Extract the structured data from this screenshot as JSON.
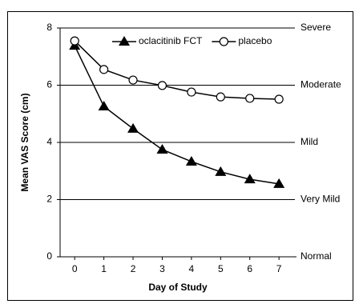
{
  "chart_data": {
    "type": "line",
    "xlabel": "Day of Study",
    "ylabel": "Mean VAS Score (cm)",
    "x": [
      0,
      1,
      2,
      3,
      4,
      5,
      6,
      7
    ],
    "series": [
      {
        "name": "oclacitinib FCT",
        "color": "#000000",
        "marker": "triangle",
        "values": [
          7.38,
          5.26,
          4.48,
          3.75,
          3.33,
          2.97,
          2.71,
          2.55
        ]
      },
      {
        "name": "placebo",
        "color": "#000000",
        "marker": "circle",
        "values": [
          7.55,
          6.55,
          6.18,
          5.99,
          5.76,
          5.59,
          5.54,
          5.51
        ]
      }
    ],
    "xlim": [
      -0.5,
      7.6
    ],
    "xticks": [
      0,
      1,
      2,
      3,
      4,
      5,
      6,
      7
    ],
    "ylim": [
      0,
      8
    ],
    "yticks": [
      0,
      2,
      4,
      6,
      8
    ],
    "y2lim": [
      0,
      8
    ],
    "y2ticks": [
      {
        "value": 0,
        "label": "Normal"
      },
      {
        "value": 2,
        "label": "Very Mild"
      },
      {
        "value": 4,
        "label": "Mild"
      },
      {
        "value": 6,
        "label": "Moderate"
      },
      {
        "value": 8,
        "label": "Severe"
      }
    ],
    "grid": true,
    "legend": "top"
  }
}
